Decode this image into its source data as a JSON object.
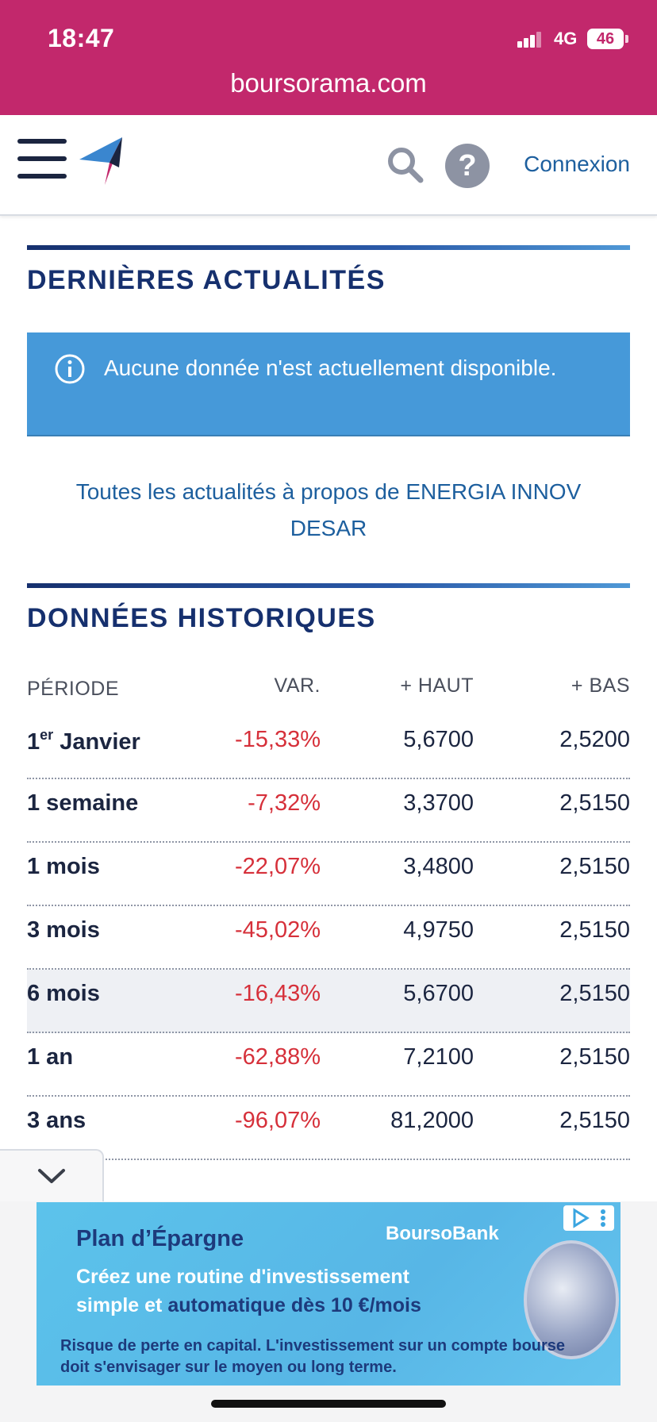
{
  "status_bar": {
    "time": "18:47",
    "network": "4G",
    "battery": "46"
  },
  "browser": {
    "url": "boursorama.com"
  },
  "header": {
    "login_label": "Connexion",
    "help_label": "?"
  },
  "news": {
    "title": "DERNIÈRES ACTUALITÉS",
    "alert_text": "Aucune donnée n'est actuellement disponible.",
    "all_news_link": "Toutes les actualités à propos de ENERGIA INNOV DESAR"
  },
  "history": {
    "title": "DONNÉES HISTORIQUES",
    "columns": {
      "period": "PÉRIODE",
      "var": "VAR.",
      "high": "+ HAUT",
      "low": "+ BAS"
    },
    "rows": [
      {
        "period": "1",
        "period_sup": "er",
        "period_rest": " Janvier",
        "var": "-15,33%",
        "high": "5,6700",
        "low": "2,5200"
      },
      {
        "period": "1 semaine",
        "var": "-7,32%",
        "high": "3,3700",
        "low": "2,5150"
      },
      {
        "period": "1 mois",
        "var": "-22,07%",
        "high": "3,4800",
        "low": "2,5150"
      },
      {
        "period": "3 mois",
        "var": "-45,02%",
        "high": "4,9750",
        "low": "2,5150"
      },
      {
        "period": "6 mois",
        "var": "-16,43%",
        "high": "5,6700",
        "low": "2,5150"
      },
      {
        "period": "1 an",
        "var": "-62,88%",
        "high": "7,2100",
        "low": "2,5150"
      },
      {
        "period": "3 ans",
        "var": "-96,07%",
        "high": "81,2000",
        "low": "2,5150"
      }
    ]
  },
  "ad": {
    "title": "Plan d’Épargne",
    "brand": "BoursoBank",
    "line1": "Créez une routine d'investissement",
    "line2_a": "simple et ",
    "line2_b": "automatique dès 10 €/mois",
    "risk": "Risque de perte en capital. L'investissement sur un compte bourse doit s'envisager sur le moyen ou long terme."
  },
  "colors": {
    "brand_bar": "#c2286c",
    "title_blue": "#16306e",
    "link_blue": "#1d5f9e",
    "alert_blue": "#4699d9",
    "negative_red": "#d6303a"
  }
}
